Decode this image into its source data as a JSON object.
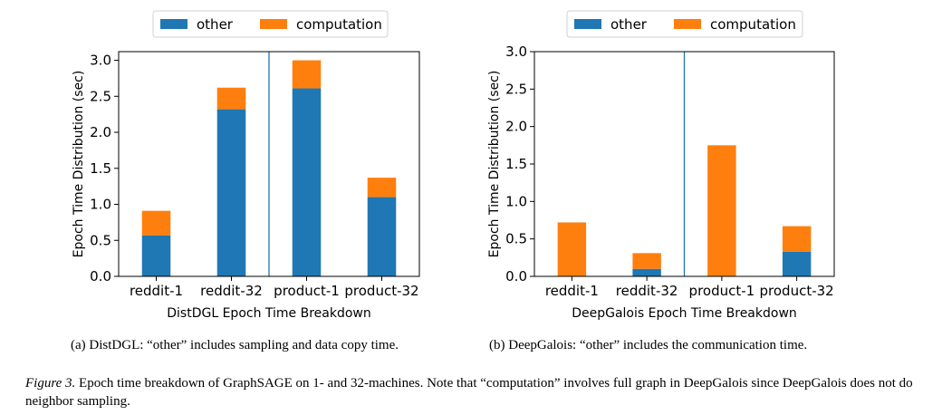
{
  "chart_data": [
    {
      "id": "distdgl",
      "type": "bar",
      "stacked": true,
      "categories": [
        "reddit-1",
        "reddit-32",
        "product-1",
        "product-32"
      ],
      "series": [
        {
          "name": "other",
          "color": "#1f77b4",
          "values": [
            0.57,
            2.32,
            2.61,
            1.1
          ]
        },
        {
          "name": "computation",
          "color": "#ff7f0e",
          "values": [
            0.34,
            0.3,
            0.39,
            0.27
          ]
        }
      ],
      "title": "",
      "xlabel": "DistDGL Epoch Time Breakdown",
      "ylabel": "Epoch Time Distribution (sec)",
      "ylim": [
        0,
        3.12
      ],
      "yticks": [
        "0.0",
        "0.5",
        "1.0",
        "1.5",
        "2.0",
        "2.5",
        "3.0"
      ],
      "ytick_values": [
        0,
        0.5,
        1.0,
        1.5,
        2.0,
        2.5,
        3.0
      ],
      "separator_after_category": 1,
      "legend_position": "top-center",
      "grid": false,
      "caption": "(a) DistDGL: “other” includes sampling and data copy time."
    },
    {
      "id": "deepgalois",
      "type": "bar",
      "stacked": true,
      "categories": [
        "reddit-1",
        "reddit-32",
        "product-1",
        "product-32"
      ],
      "series": [
        {
          "name": "other",
          "color": "#1f77b4",
          "values": [
            0.0,
            0.1,
            0.0,
            0.33
          ]
        },
        {
          "name": "computation",
          "color": "#ff7f0e",
          "values": [
            0.72,
            0.21,
            1.75,
            0.34
          ]
        }
      ],
      "title": "",
      "xlabel": "DeepGalois Epoch Time Breakdown",
      "ylabel": "Epoch Time Distribution (sec)",
      "ylim": [
        0,
        3.0
      ],
      "yticks": [
        "0.0",
        "0.5",
        "1.0",
        "1.5",
        "2.0",
        "2.5",
        "3.0"
      ],
      "ytick_values": [
        0,
        0.5,
        1.0,
        1.5,
        2.0,
        2.5,
        3.0
      ],
      "separator_after_category": 1,
      "legend_position": "top-center",
      "grid": false,
      "caption": "(b) DeepGalois: “other” includes the communication time."
    }
  ],
  "figure_caption": {
    "label": "Figure 3.",
    "text": " Epoch time breakdown of GraphSAGE on 1- and 32-machines. Note that “computation” involves full graph in DeepGalois since DeepGalois does not do neighbor sampling."
  }
}
